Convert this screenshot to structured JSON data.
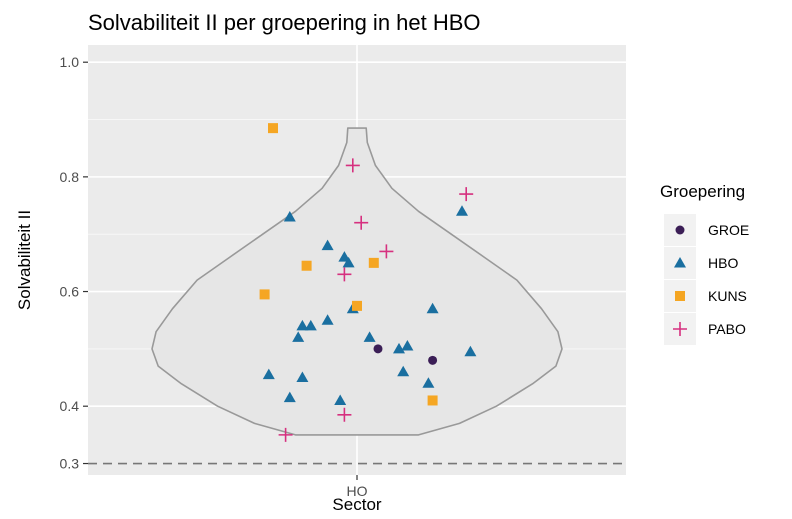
{
  "chart_data": {
    "type": "scatter",
    "title": "Solvabiliteit II per groepering in het HBO",
    "xlabel": "Sector",
    "ylabel": "Solvabiliteit II",
    "categories": [
      "HO"
    ],
    "ylim": [
      0.28,
      1.03
    ],
    "yticks": [
      0.3,
      0.4,
      0.6,
      0.8,
      1.0
    ],
    "ytick_labels": [
      "0.3",
      "0.4",
      "0.6",
      "0.8",
      "1.0"
    ],
    "reference_line": 0.3,
    "grid": true,
    "legend_position": "right",
    "legend": {
      "title": "Groepering",
      "entries": [
        {
          "name": "GROE",
          "color": "#3b1e56",
          "shape": "circle"
        },
        {
          "name": "HBO",
          "color": "#1a6fa0",
          "shape": "triangle"
        },
        {
          "name": "KUNS",
          "color": "#f5a623",
          "shape": "square"
        },
        {
          "name": "PABO",
          "color": "#d6307f",
          "shape": "plus"
        }
      ]
    },
    "violin": {
      "category": "HO",
      "fill": "#e6e6e6",
      "stroke": "#999999",
      "profile": [
        {
          "y": 0.35,
          "w": 0.3
        },
        {
          "y": 0.37,
          "w": 0.5
        },
        {
          "y": 0.4,
          "w": 0.68
        },
        {
          "y": 0.44,
          "w": 0.86
        },
        {
          "y": 0.47,
          "w": 0.97
        },
        {
          "y": 0.5,
          "w": 1.0
        },
        {
          "y": 0.53,
          "w": 0.98
        },
        {
          "y": 0.57,
          "w": 0.9
        },
        {
          "y": 0.62,
          "w": 0.78
        },
        {
          "y": 0.66,
          "w": 0.62
        },
        {
          "y": 0.7,
          "w": 0.46
        },
        {
          "y": 0.74,
          "w": 0.3
        },
        {
          "y": 0.78,
          "w": 0.17
        },
        {
          "y": 0.82,
          "w": 0.09
        },
        {
          "y": 0.86,
          "w": 0.05
        },
        {
          "y": 0.885,
          "w": 0.045
        }
      ]
    },
    "series": [
      {
        "name": "GROE",
        "points": [
          {
            "x": 0.05,
            "y": 0.5
          },
          {
            "x": 0.18,
            "y": 0.48
          }
        ]
      },
      {
        "name": "HBO",
        "points": [
          {
            "x": -0.16,
            "y": 0.73
          },
          {
            "x": -0.07,
            "y": 0.68
          },
          {
            "x": -0.03,
            "y": 0.66
          },
          {
            "x": -0.02,
            "y": 0.65
          },
          {
            "x": -0.01,
            "y": 0.57
          },
          {
            "x": -0.11,
            "y": 0.54
          },
          {
            "x": -0.13,
            "y": 0.54
          },
          {
            "x": -0.14,
            "y": 0.52
          },
          {
            "x": -0.07,
            "y": 0.55
          },
          {
            "x": 0.03,
            "y": 0.52
          },
          {
            "x": 0.1,
            "y": 0.5
          },
          {
            "x": 0.12,
            "y": 0.505
          },
          {
            "x": 0.18,
            "y": 0.57
          },
          {
            "x": 0.25,
            "y": 0.74
          },
          {
            "x": 0.27,
            "y": 0.495
          },
          {
            "x": -0.21,
            "y": 0.455
          },
          {
            "x": -0.13,
            "y": 0.45
          },
          {
            "x": -0.16,
            "y": 0.415
          },
          {
            "x": -0.04,
            "y": 0.41
          },
          {
            "x": 0.11,
            "y": 0.46
          },
          {
            "x": 0.17,
            "y": 0.44
          }
        ]
      },
      {
        "name": "KUNS",
        "points": [
          {
            "x": -0.2,
            "y": 0.885
          },
          {
            "x": -0.12,
            "y": 0.645
          },
          {
            "x": 0.04,
            "y": 0.65
          },
          {
            "x": -0.22,
            "y": 0.595
          },
          {
            "x": 0.0,
            "y": 0.575
          },
          {
            "x": 0.18,
            "y": 0.41
          }
        ]
      },
      {
        "name": "PABO",
        "points": [
          {
            "x": -0.01,
            "y": 0.82
          },
          {
            "x": 0.01,
            "y": 0.72
          },
          {
            "x": 0.07,
            "y": 0.67
          },
          {
            "x": -0.03,
            "y": 0.63
          },
          {
            "x": 0.26,
            "y": 0.77
          },
          {
            "x": -0.03,
            "y": 0.385
          },
          {
            "x": -0.17,
            "y": 0.35
          }
        ]
      }
    ]
  }
}
